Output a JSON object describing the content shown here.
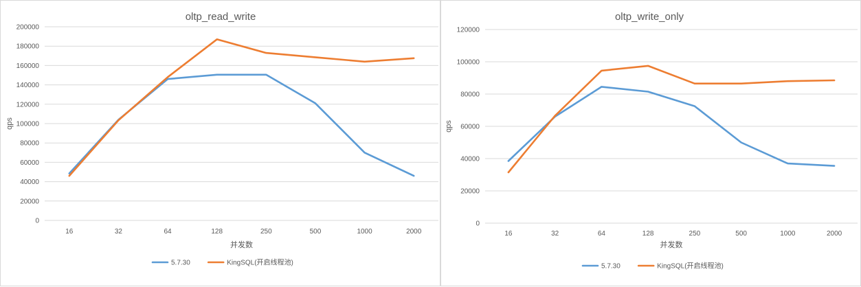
{
  "chart_data": [
    {
      "type": "line",
      "title": "oltp_read_write",
      "xlabel": "并发数",
      "ylabel": "qps",
      "categories": [
        "16",
        "32",
        "64",
        "128",
        "250",
        "500",
        "1000",
        "2000"
      ],
      "ylim": [
        0,
        200000
      ],
      "yticks": [
        0,
        20000,
        40000,
        60000,
        80000,
        100000,
        120000,
        140000,
        160000,
        180000,
        200000
      ],
      "grid": true,
      "legend_position": "bottom",
      "series": [
        {
          "name": "5.7.30",
          "color": "#5B9BD5",
          "values": [
            48500,
            104000,
            146000,
            150500,
            150500,
            121000,
            70000,
            46000
          ]
        },
        {
          "name": "KingSQL(开启线程池)",
          "color": "#ED7D31",
          "values": [
            46000,
            103500,
            148000,
            187000,
            173000,
            168500,
            164000,
            167500
          ]
        }
      ]
    },
    {
      "type": "line",
      "title": "oltp_write_only",
      "xlabel": "并发数",
      "ylabel": "qps",
      "categories": [
        "16",
        "32",
        "64",
        "128",
        "250",
        "500",
        "1000",
        "2000"
      ],
      "ylim": [
        0,
        120000
      ],
      "yticks": [
        0,
        20000,
        40000,
        60000,
        80000,
        100000,
        120000
      ],
      "grid": true,
      "legend_position": "bottom",
      "series": [
        {
          "name": "5.7.30",
          "color": "#5B9BD5",
          "values": [
            38500,
            66000,
            84500,
            81500,
            72500,
            50000,
            37000,
            35500
          ]
        },
        {
          "name": "KingSQL(开启线程池)",
          "color": "#ED7D31",
          "values": [
            31500,
            66500,
            94500,
            97500,
            86500,
            86500,
            88000,
            88500
          ]
        }
      ]
    }
  ]
}
